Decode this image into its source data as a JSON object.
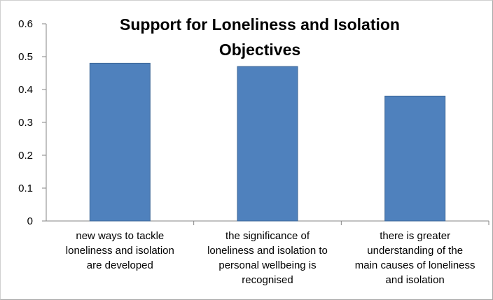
{
  "chart_data": {
    "type": "bar",
    "title": "Support for Loneliness and Isolation Objectives",
    "title_lines": [
      "Support for Loneliness and Isolation",
      "Objectives"
    ],
    "categories": [
      "new ways to tackle loneliness and isolation are developed",
      "the significance of loneliness and isolation to personal wellbeing is recognised",
      "there is greater understanding of the main causes of loneliness and isolation"
    ],
    "category_lines": [
      [
        "new ways to tackle",
        "loneliness and isolation",
        "are developed"
      ],
      [
        "the significance of",
        "loneliness and isolation to",
        "personal wellbeing is",
        "recognised"
      ],
      [
        "there is greater",
        "understanding of the",
        "main causes of loneliness",
        "and isolation"
      ]
    ],
    "values": [
      0.48,
      0.47,
      0.38
    ],
    "ylim": [
      0,
      0.6
    ],
    "yticks": [
      "0",
      "0.1",
      "0.2",
      "0.3",
      "0.4",
      "0.5",
      "0.6"
    ],
    "xlabel": "",
    "ylabel": "",
    "legend": "none",
    "grid": false,
    "colors": {
      "bar": "#4f81bd",
      "bar_edge": "#3c6696",
      "axis": "#868686"
    }
  }
}
